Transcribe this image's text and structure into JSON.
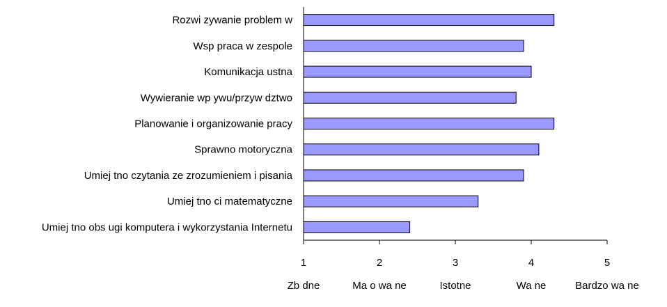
{
  "chart_data": {
    "type": "bar",
    "orientation": "horizontal",
    "title": "",
    "xlabel": "",
    "ylabel": "",
    "categories": [
      "Rozwi zywanie problem w",
      "Wsp praca w zespole",
      "Komunikacja ustna",
      "Wywieranie wp ywu/przyw dztwo",
      "Planowanie i organizowanie pracy",
      "Sprawno motoryczna",
      "Umiej tno czytania ze zrozumieniem i pisania",
      "Umiej tno ci matematyczne",
      "Umiej tno obs ugi komputera i wykorzystania Internetu"
    ],
    "values": [
      4.3,
      3.9,
      4.0,
      3.8,
      4.3,
      4.1,
      3.9,
      3.3,
      2.4
    ],
    "xlim": [
      1,
      5
    ],
    "x_ticks": [
      1,
      2,
      3,
      4,
      5
    ],
    "x_tick_labels": [
      "1",
      "2",
      "3",
      "4",
      "5"
    ],
    "level_labels": [
      "Zb dne",
      "Ma o wa ne",
      "Istotne",
      "Wa ne",
      "Bardzo wa ne"
    ],
    "grid": false,
    "legend": "none",
    "bar_color": "#9999ff",
    "bar_edge_color": "#000000"
  }
}
